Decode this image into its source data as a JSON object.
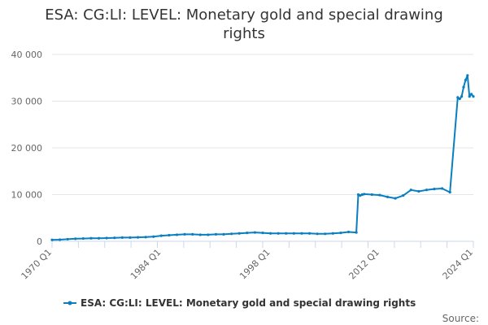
{
  "title_lines": [
    "ESA: CG:LI: LEVEL: Monetary gold and special drawing",
    "rights"
  ],
  "source_label": "Source:",
  "colors": {
    "series": "#0a7fc0",
    "grid": "#e6e6e6",
    "axis": "#ccd6eb"
  },
  "chart_data": {
    "type": "line",
    "title": "ESA: CG:LI: LEVEL: Monetary gold and special drawing rights",
    "ylim": [
      0,
      40000
    ],
    "y_ticks": [
      0,
      10000,
      20000,
      30000,
      40000
    ],
    "y_tick_labels": [
      "0",
      "10 000",
      "20 000",
      "30 000",
      "40 000"
    ],
    "x_tick_labels": [
      "1970 Q1",
      "1984 Q1",
      "1998 Q1",
      "2012 Q1",
      "2024 Q1"
    ],
    "grid": "horizontal",
    "legend_position": "bottom",
    "series": [
      {
        "name": "ESA: CG:LI: LEVEL: Monetary gold and special drawing rights",
        "x": [
          "1970 Q1",
          "1971 Q1",
          "1972 Q1",
          "1973 Q1",
          "1974 Q1",
          "1975 Q1",
          "1976 Q1",
          "1977 Q1",
          "1978 Q1",
          "1979 Q1",
          "1980 Q1",
          "1981 Q1",
          "1982 Q1",
          "1983 Q1",
          "1984 Q1",
          "1985 Q1",
          "1986 Q1",
          "1987 Q1",
          "1988 Q1",
          "1989 Q1",
          "1990 Q1",
          "1991 Q1",
          "1992 Q1",
          "1993 Q1",
          "1994 Q1",
          "1995 Q1",
          "1996 Q1",
          "1997 Q1",
          "1998 Q1",
          "1999 Q1",
          "2000 Q1",
          "2001 Q1",
          "2002 Q1",
          "2003 Q1",
          "2004 Q1",
          "2005 Q1",
          "2006 Q1",
          "2007 Q1",
          "2008 Q1",
          "2009 Q1",
          "2009 Q2",
          "2009 Q3",
          "2009 Q4",
          "2010 Q1",
          "2011 Q1",
          "2012 Q1",
          "2013 Q1",
          "2014 Q1",
          "2015 Q1",
          "2016 Q1",
          "2017 Q1",
          "2018 Q1",
          "2019 Q1",
          "2020 Q1",
          "2021 Q1",
          "2022 Q1",
          "2022 Q2",
          "2022 Q3",
          "2022 Q4",
          "2023 Q1",
          "2023 Q2",
          "2023 Q3",
          "2023 Q4",
          "2024 Q1"
        ],
        "values": [
          300,
          350,
          450,
          550,
          600,
          650,
          650,
          700,
          750,
          800,
          800,
          850,
          900,
          1000,
          1200,
          1300,
          1400,
          1500,
          1500,
          1400,
          1400,
          1500,
          1500,
          1600,
          1700,
          1800,
          1900,
          1800,
          1700,
          1700,
          1700,
          1700,
          1700,
          1700,
          1600,
          1600,
          1700,
          1800,
          2000,
          1900,
          10000,
          9800,
          10000,
          10100,
          10000,
          9900,
          9500,
          9200,
          9800,
          11000,
          10700,
          11000,
          11200,
          11300,
          10500,
          30800,
          30500,
          31000,
          33000,
          34500,
          35500,
          31000,
          31500,
          31000
        ]
      }
    ]
  }
}
